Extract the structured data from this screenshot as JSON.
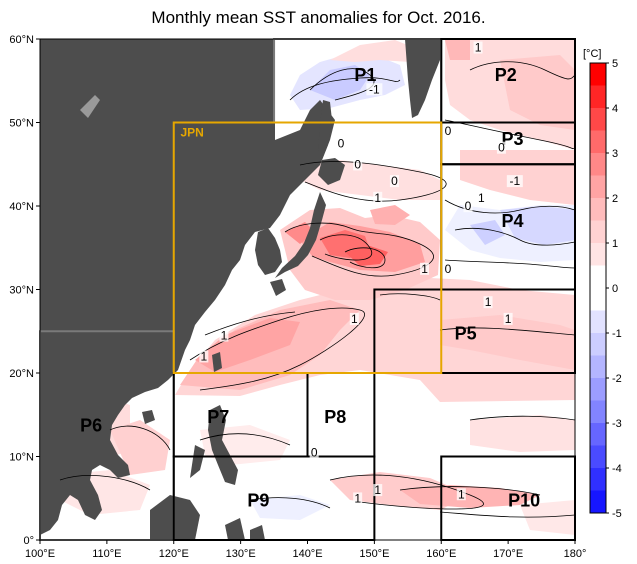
{
  "title": "Monthly mean SST anomalies for Oct. 2016.",
  "map": {
    "lon_range": [
      100,
      180
    ],
    "lat_range": [
      0,
      60
    ],
    "lon_ticks": [
      "100°E",
      "110°E",
      "120°E",
      "130°E",
      "140°E",
      "150°E",
      "160°E",
      "170°E",
      "180°"
    ],
    "lat_ticks": [
      "0°",
      "10°N",
      "20°N",
      "30°N",
      "40°N",
      "50°N",
      "60°N"
    ],
    "jpn_label": "JPN",
    "colors": {
      "land": "#4d4d4d",
      "jpn_box": "#e6a700",
      "region_box": "#000000"
    },
    "regions": [
      {
        "name": "P1",
        "lon": [
          135,
          160
        ],
        "lat": [
          50,
          60
        ]
      },
      {
        "name": "P2",
        "lon": [
          160,
          180
        ],
        "lat": [
          50,
          60
        ]
      },
      {
        "name": "P3",
        "lon": [
          160,
          180
        ],
        "lat": [
          45,
          50
        ]
      },
      {
        "name": "P4",
        "lon": [
          160,
          180
        ],
        "lat": [
          30,
          45
        ]
      },
      {
        "name": "P5",
        "lon": [
          150,
          180
        ],
        "lat": [
          20,
          30
        ]
      },
      {
        "name": "P6",
        "lon": [
          100,
          120
        ],
        "lat": [
          0,
          25
        ]
      },
      {
        "name": "P7",
        "lon": [
          120,
          140
        ],
        "lat": [
          10,
          20
        ]
      },
      {
        "name": "P8",
        "lon": [
          140,
          150
        ],
        "lat": [
          10,
          20
        ]
      },
      {
        "name": "P9",
        "lon": [
          120,
          150
        ],
        "lat": [
          0,
          10
        ]
      },
      {
        "name": "P10",
        "lon": [
          160,
          180
        ],
        "lat": [
          0,
          10
        ]
      }
    ],
    "contour_labels": [
      {
        "t": "1",
        "lon": 165.5,
        "lat": 58.5
      },
      {
        "t": "-1",
        "lon": 150,
        "lat": 53.5
      },
      {
        "t": "0",
        "lon": 161,
        "lat": 48.5
      },
      {
        "t": "0",
        "lon": 169,
        "lat": 46.5
      },
      {
        "t": "-1",
        "lon": 171,
        "lat": 42.5
      },
      {
        "t": "0",
        "lon": 145,
        "lat": 47
      },
      {
        "t": "0",
        "lon": 147.5,
        "lat": 44.5
      },
      {
        "t": "0",
        "lon": 153,
        "lat": 42.5
      },
      {
        "t": "1",
        "lon": 150.5,
        "lat": 40.5
      },
      {
        "t": "0",
        "lon": 164,
        "lat": 39.5
      },
      {
        "t": "1",
        "lon": 166,
        "lat": 40.5
      },
      {
        "t": "1",
        "lon": 157.5,
        "lat": 32
      },
      {
        "t": "0",
        "lon": 161,
        "lat": 32
      },
      {
        "t": "1",
        "lon": 167,
        "lat": 28
      },
      {
        "t": "1",
        "lon": 170,
        "lat": 26
      },
      {
        "t": "1",
        "lon": 147,
        "lat": 26
      },
      {
        "t": "1",
        "lon": 127.5,
        "lat": 24
      },
      {
        "t": "1",
        "lon": 124.5,
        "lat": 21.5
      },
      {
        "t": "0",
        "lon": 141,
        "lat": 10
      },
      {
        "t": "1",
        "lon": 150.5,
        "lat": 5.5
      },
      {
        "t": "1",
        "lon": 147.5,
        "lat": 4.5
      },
      {
        "t": "1",
        "lon": 163,
        "lat": 5
      }
    ]
  },
  "colorbar": {
    "unit": "[°C]",
    "labels": [
      "5",
      "4",
      "3",
      "2",
      "1",
      "0",
      "-1",
      "-2",
      "-3",
      "-4",
      "-5"
    ],
    "colors": [
      "#ff0000",
      "#ff2626",
      "#ff4848",
      "#ff6a6a",
      "#ff8888",
      "#ffa4a4",
      "#ffbcbc",
      "#ffd2d2",
      "#ffe4e4",
      "#ffffff",
      "#ffffff",
      "#e2e2ff",
      "#cccdff",
      "#b4b5ff",
      "#9c9dff",
      "#8284ff",
      "#6666ff",
      "#4a4bff",
      "#3030ff",
      "#1616ff"
    ]
  }
}
